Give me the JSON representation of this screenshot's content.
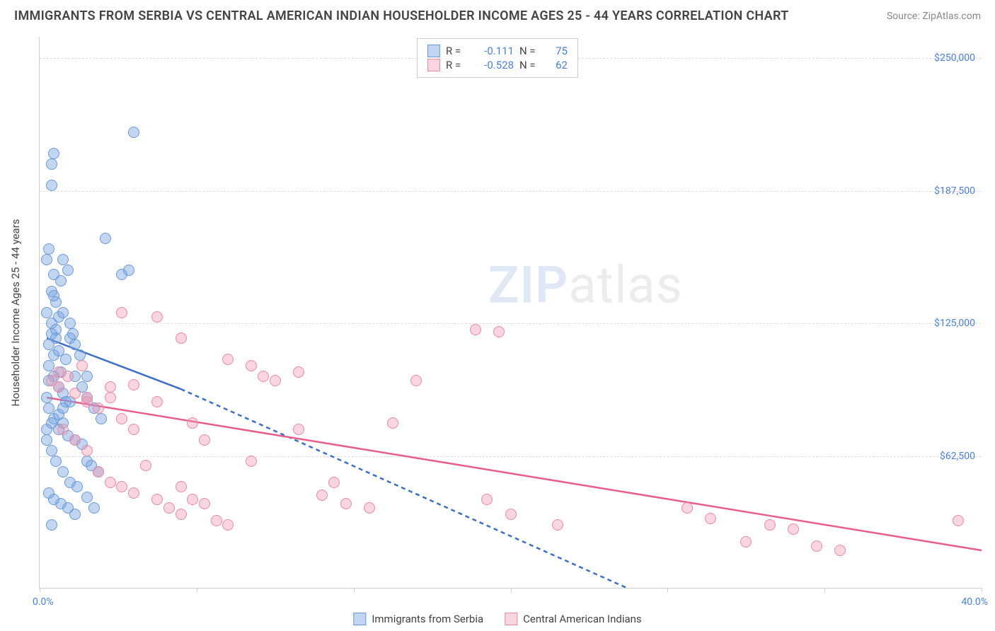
{
  "header": {
    "title": "IMMIGRANTS FROM SERBIA VS CENTRAL AMERICAN INDIAN HOUSEHOLDER INCOME AGES 25 - 44 YEARS CORRELATION CHART",
    "source": "Source: ZipAtlas.com"
  },
  "watermark": {
    "zip": "ZIP",
    "atlas": "atlas"
  },
  "chart": {
    "type": "scatter",
    "xlim": [
      0,
      40
    ],
    "ylim": [
      0,
      260000
    ],
    "xaxis_min_label": "0.0%",
    "xaxis_max_label": "40.0%",
    "yaxis_label": "Householder Income Ages 25 - 44 years",
    "ytick_values": [
      62500,
      125000,
      187500,
      250000
    ],
    "ytick_labels": [
      "$62,500",
      "$125,000",
      "$187,500",
      "$250,000"
    ],
    "xtick_positions": [
      0,
      6.67,
      13.33,
      20,
      26.67,
      33.33,
      40
    ],
    "background_color": "#ffffff",
    "grid_color": "#dddddd",
    "axis_color": "#cccccc",
    "tick_label_color": "#4a7fd8",
    "series": [
      {
        "name": "Immigrants from Serbia",
        "R": "-0.111",
        "N": "75",
        "point_fill": "rgba(120,165,225,0.45)",
        "point_stroke": "#6a9ad8",
        "line_color": "#3d6fc4",
        "line_solid": {
          "x1": 0.3,
          "y1": 118000,
          "x2": 6.0,
          "y2": 94000
        },
        "line_dashed": {
          "x1": 6.0,
          "y1": 94000,
          "x2": 25.0,
          "y2": 0
        },
        "points": [
          [
            0.4,
            115000
          ],
          [
            0.5,
            120000
          ],
          [
            0.6,
            110000
          ],
          [
            0.7,
            118000
          ],
          [
            0.8,
            112000
          ],
          [
            0.3,
            130000
          ],
          [
            0.5,
            140000
          ],
          [
            0.6,
            148000
          ],
          [
            0.9,
            145000
          ],
          [
            1.0,
            155000
          ],
          [
            1.2,
            150000
          ],
          [
            0.4,
            105000
          ],
          [
            0.6,
            100000
          ],
          [
            0.8,
            95000
          ],
          [
            1.0,
            92000
          ],
          [
            1.1,
            88000
          ],
          [
            0.5,
            125000
          ],
          [
            0.7,
            135000
          ],
          [
            1.3,
            118000
          ],
          [
            1.5,
            115000
          ],
          [
            0.3,
            90000
          ],
          [
            0.4,
            85000
          ],
          [
            0.6,
            80000
          ],
          [
            0.8,
            75000
          ],
          [
            1.0,
            78000
          ],
          [
            1.2,
            72000
          ],
          [
            1.5,
            70000
          ],
          [
            1.8,
            68000
          ],
          [
            2.0,
            60000
          ],
          [
            2.2,
            58000
          ],
          [
            2.5,
            55000
          ],
          [
            0.5,
            200000
          ],
          [
            0.6,
            205000
          ],
          [
            0.5,
            190000
          ],
          [
            4.0,
            215000
          ],
          [
            2.8,
            165000
          ],
          [
            3.5,
            148000
          ],
          [
            3.8,
            150000
          ],
          [
            0.4,
            160000
          ],
          [
            1.5,
            100000
          ],
          [
            1.8,
            95000
          ],
          [
            2.0,
            90000
          ],
          [
            2.3,
            85000
          ],
          [
            2.6,
            80000
          ],
          [
            0.8,
            128000
          ],
          [
            1.0,
            130000
          ],
          [
            1.3,
            125000
          ],
          [
            0.3,
            70000
          ],
          [
            0.5,
            65000
          ],
          [
            0.7,
            60000
          ],
          [
            1.0,
            55000
          ],
          [
            1.3,
            50000
          ],
          [
            1.6,
            48000
          ],
          [
            2.0,
            43000
          ],
          [
            2.3,
            38000
          ],
          [
            0.4,
            45000
          ],
          [
            0.6,
            42000
          ],
          [
            0.9,
            40000
          ],
          [
            1.2,
            38000
          ],
          [
            1.5,
            35000
          ],
          [
            0.3,
            75000
          ],
          [
            0.5,
            78000
          ],
          [
            0.8,
            82000
          ],
          [
            1.0,
            85000
          ],
          [
            1.3,
            88000
          ],
          [
            0.5,
            30000
          ],
          [
            0.3,
            155000
          ],
          [
            0.6,
            138000
          ],
          [
            0.4,
            98000
          ],
          [
            0.9,
            102000
          ],
          [
            1.1,
            108000
          ],
          [
            0.7,
            122000
          ],
          [
            1.4,
            120000
          ],
          [
            1.7,
            110000
          ],
          [
            2.0,
            100000
          ]
        ]
      },
      {
        "name": "Central American Indians",
        "R": "-0.528",
        "N": "62",
        "point_fill": "rgba(240,150,175,0.40)",
        "point_stroke": "#e88aa8",
        "line_color": "#e85d8c",
        "line_solid": {
          "x1": 0.3,
          "y1": 90000,
          "x2": 40.0,
          "y2": 18000
        },
        "points": [
          [
            0.5,
            98000
          ],
          [
            0.8,
            95000
          ],
          [
            1.2,
            100000
          ],
          [
            1.5,
            92000
          ],
          [
            2.0,
            88000
          ],
          [
            2.5,
            85000
          ],
          [
            3.0,
            90000
          ],
          [
            3.5,
            80000
          ],
          [
            4.0,
            75000
          ],
          [
            5.0,
            128000
          ],
          [
            6.0,
            118000
          ],
          [
            6.5,
            78000
          ],
          [
            7.0,
            70000
          ],
          [
            8.0,
            108000
          ],
          [
            9.0,
            105000
          ],
          [
            9.5,
            100000
          ],
          [
            10.0,
            98000
          ],
          [
            11.0,
            75000
          ],
          [
            12.0,
            44000
          ],
          [
            11.0,
            102000
          ],
          [
            12.5,
            50000
          ],
          [
            13.0,
            40000
          ],
          [
            14.0,
            38000
          ],
          [
            15.0,
            78000
          ],
          [
            16.0,
            98000
          ],
          [
            18.5,
            122000
          ],
          [
            19.5,
            121000
          ],
          [
            19.0,
            42000
          ],
          [
            20.0,
            35000
          ],
          [
            22.0,
            30000
          ],
          [
            1.0,
            75000
          ],
          [
            1.5,
            70000
          ],
          [
            2.0,
            65000
          ],
          [
            2.5,
            55000
          ],
          [
            3.0,
            50000
          ],
          [
            3.5,
            48000
          ],
          [
            4.0,
            45000
          ],
          [
            4.5,
            58000
          ],
          [
            5.0,
            42000
          ],
          [
            5.5,
            38000
          ],
          [
            6.0,
            35000
          ],
          [
            6.5,
            42000
          ],
          [
            7.0,
            40000
          ],
          [
            7.5,
            32000
          ],
          [
            8.0,
            30000
          ],
          [
            2.0,
            90000
          ],
          [
            3.0,
            95000
          ],
          [
            4.0,
            96000
          ],
          [
            0.8,
            102000
          ],
          [
            1.8,
            105000
          ],
          [
            3.5,
            130000
          ],
          [
            27.5,
            38000
          ],
          [
            28.5,
            33000
          ],
          [
            30.0,
            22000
          ],
          [
            31.0,
            30000
          ],
          [
            32.0,
            28000
          ],
          [
            33.0,
            20000
          ],
          [
            34.0,
            18000
          ],
          [
            39.0,
            32000
          ],
          [
            5.0,
            88000
          ],
          [
            6.0,
            48000
          ],
          [
            9.0,
            60000
          ]
        ]
      }
    ]
  },
  "legend": {
    "stats_labels": {
      "R": "R =",
      "N": "N ="
    },
    "series_labels": [
      "Immigrants from Serbia",
      "Central American Indians"
    ]
  }
}
